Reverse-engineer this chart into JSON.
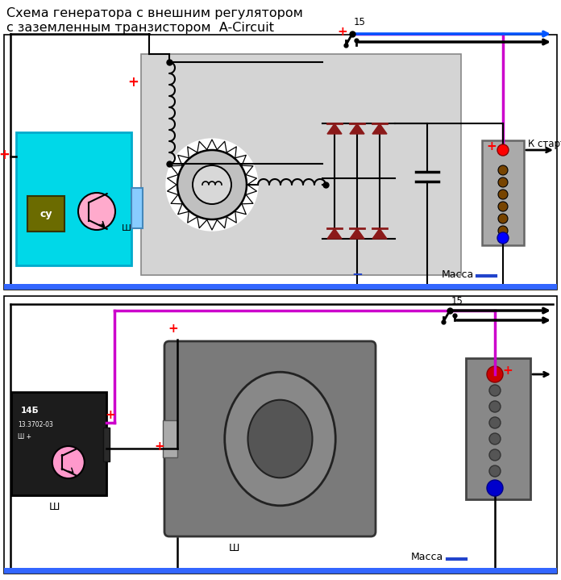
{
  "title_line1": "Схема генератора с внешним регулятором",
  "title_line2": "с заземленным транзистором  A-Circuit",
  "title_fontsize": 11.5,
  "bg_color": "#ffffff",
  "gray_box": "#d0d0d0",
  "cyan_color": "#00d8e8",
  "magenta_color": "#cc00cc",
  "blue_arrow": "#0055ff",
  "dark_red_diode": "#8b1a1a",
  "ground_bar": "#3366ff",
  "text_massa": "Масса",
  "text_k_starter": "К стартеру",
  "label_15": "15",
  "label_W": "Ш",
  "label_CY": "су",
  "fig_w": 6.96,
  "fig_h": 7.19,
  "dpi": 100
}
